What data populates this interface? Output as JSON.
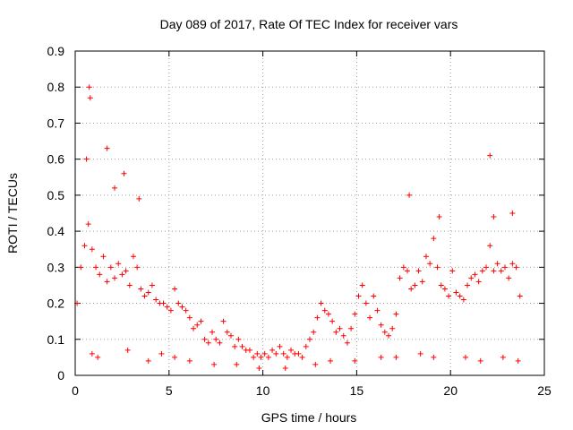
{
  "chart_data": {
    "type": "scatter",
    "title": "Day 089 of 2017, Rate Of TEC Index for receiver vars",
    "xlabel": "GPS time / hours",
    "ylabel": "ROTI / TECUs",
    "xlim": [
      0,
      25
    ],
    "ylim": [
      0,
      0.9
    ],
    "xticks": [
      "0",
      "5",
      "10",
      "15",
      "20",
      "25"
    ],
    "yticks": [
      "0",
      "0.1",
      "0.2",
      "0.3",
      "0.4",
      "0.5",
      "0.6",
      "0.7",
      "0.8",
      "0.9"
    ],
    "grid": true,
    "legend": "none",
    "marker": "plus",
    "color": "#ff0000",
    "series": [
      {
        "x": [
          0.1,
          0.3,
          0.5,
          0.7,
          0.9,
          1.1,
          1.3,
          1.5,
          1.7,
          1.9,
          2.1,
          2.3,
          2.5,
          2.7,
          2.9,
          3.1,
          3.3,
          3.5,
          3.7,
          3.9,
          4.1,
          4.3,
          4.5,
          4.7,
          4.9,
          5.1,
          5.3,
          5.5,
          5.7,
          5.9,
          6.1,
          6.3,
          6.5,
          6.7,
          6.9,
          7.1,
          7.3,
          7.5,
          7.7,
          7.9,
          8.1,
          8.3,
          8.5,
          8.7,
          8.9,
          9.1,
          9.3,
          9.5,
          9.7,
          9.9,
          10.1,
          10.3,
          10.5,
          10.7,
          10.9,
          11.1,
          11.3,
          11.5,
          11.7,
          11.9,
          12.1,
          12.3,
          12.5,
          12.7,
          12.9,
          13.1,
          13.3,
          13.5,
          13.7,
          13.9,
          14.1,
          14.3,
          14.5,
          14.7,
          14.9,
          15.1,
          15.3,
          15.5,
          15.7,
          15.9,
          16.1,
          16.3,
          16.5,
          16.7,
          16.9,
          17.1,
          17.3,
          17.5,
          17.7,
          17.9,
          18.1,
          18.3,
          18.5,
          18.7,
          18.9,
          19.1,
          19.3,
          19.5,
          19.7,
          19.9,
          20.1,
          20.3,
          20.5,
          20.7,
          20.9,
          21.1,
          21.3,
          21.5,
          21.7,
          21.9,
          22.1,
          22.3,
          22.5,
          22.7,
          22.9,
          23.1,
          23.3,
          23.5,
          23.7,
          0.6,
          0.75,
          0.8,
          1.7,
          2.1,
          2.6,
          3.4,
          17.8,
          19.4,
          22.1,
          22.3,
          23.3,
          0.9,
          1.2,
          2.8,
          3.9,
          4.6,
          5.3,
          6.1,
          7.4,
          8.6,
          9.8,
          11.2,
          12.8,
          13.6,
          14.9,
          16.3,
          17.1,
          18.4,
          19.1,
          20.8,
          21.6,
          22.8,
          23.6
        ],
        "y": [
          0.2,
          0.3,
          0.36,
          0.42,
          0.35,
          0.3,
          0.28,
          0.33,
          0.26,
          0.3,
          0.27,
          0.31,
          0.28,
          0.29,
          0.25,
          0.33,
          0.3,
          0.24,
          0.22,
          0.23,
          0.25,
          0.21,
          0.2,
          0.2,
          0.19,
          0.18,
          0.24,
          0.2,
          0.19,
          0.18,
          0.16,
          0.13,
          0.14,
          0.15,
          0.1,
          0.09,
          0.12,
          0.1,
          0.09,
          0.15,
          0.12,
          0.11,
          0.08,
          0.1,
          0.08,
          0.07,
          0.07,
          0.05,
          0.06,
          0.05,
          0.06,
          0.05,
          0.07,
          0.06,
          0.08,
          0.06,
          0.05,
          0.07,
          0.06,
          0.06,
          0.05,
          0.08,
          0.1,
          0.12,
          0.16,
          0.2,
          0.18,
          0.17,
          0.15,
          0.12,
          0.13,
          0.11,
          0.09,
          0.13,
          0.17,
          0.22,
          0.25,
          0.2,
          0.16,
          0.22,
          0.18,
          0.14,
          0.12,
          0.11,
          0.13,
          0.17,
          0.27,
          0.3,
          0.29,
          0.24,
          0.25,
          0.29,
          0.26,
          0.33,
          0.31,
          0.38,
          0.3,
          0.25,
          0.24,
          0.22,
          0.29,
          0.23,
          0.22,
          0.21,
          0.25,
          0.27,
          0.28,
          0.26,
          0.29,
          0.3,
          0.36,
          0.29,
          0.31,
          0.29,
          0.3,
          0.27,
          0.31,
          0.3,
          0.22,
          0.6,
          0.8,
          0.77,
          0.63,
          0.52,
          0.56,
          0.49,
          0.5,
          0.44,
          0.61,
          0.44,
          0.45,
          0.06,
          0.05,
          0.07,
          0.04,
          0.06,
          0.05,
          0.04,
          0.03,
          0.03,
          0.02,
          0.02,
          0.03,
          0.04,
          0.04,
          0.05,
          0.05,
          0.06,
          0.05,
          0.05,
          0.04,
          0.05,
          0.04
        ]
      }
    ]
  }
}
